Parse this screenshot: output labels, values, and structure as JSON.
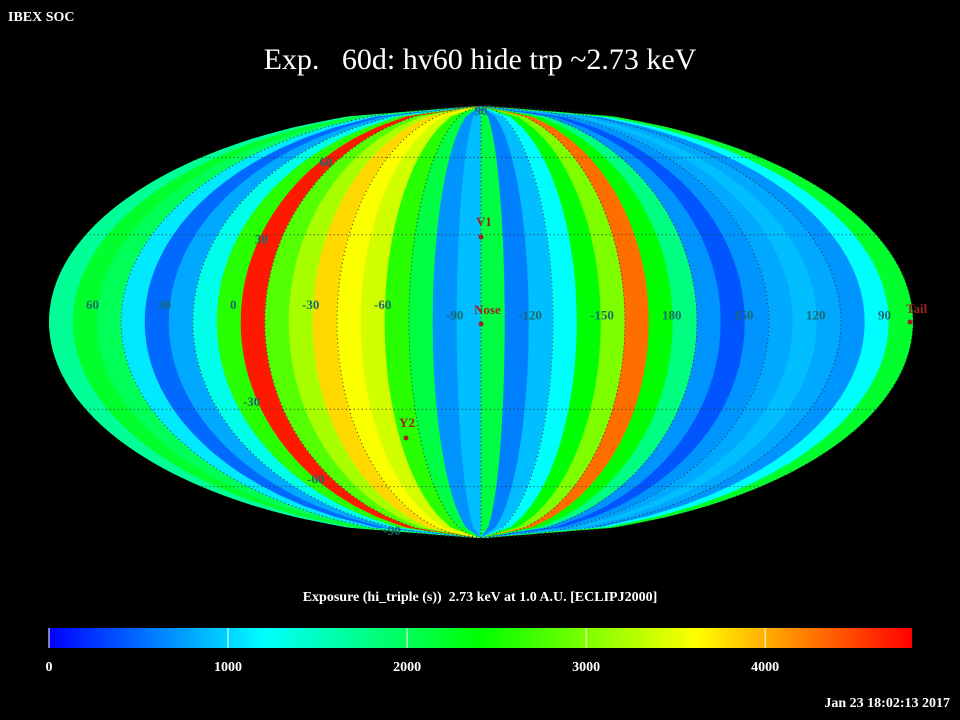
{
  "header": "IBEX SOC",
  "chart_data": {
    "type": "mollweide-map",
    "title": "Exp.   60d: hv60 hide trp ~2.73 keV",
    "center_lon": -90,
    "stripe_values": [
      1700,
      2200,
      2000,
      1100,
      500,
      800,
      1300,
      2600,
      4700,
      2800,
      3200,
      3800,
      3600,
      3400,
      2600,
      2100,
      700,
      900,
      2100,
      600,
      900,
      1200,
      2400,
      3000,
      4300,
      2400,
      1800,
      700,
      400,
      700,
      800,
      900,
      800,
      700,
      1200,
      2200
    ],
    "lon_ticks": [
      60,
      30,
      0,
      -30,
      -60,
      -90,
      -120,
      -150,
      180,
      150,
      120,
      90
    ],
    "lat_ticks": [
      90,
      60,
      30,
      -30,
      -60,
      -90
    ],
    "markers": [
      "V1",
      "Nose",
      "Y2",
      "Tail"
    ],
    "colorbar": {
      "label": "Exposure (hi_triple (s))  2.73 keV at 1.0 A.U. [ECLIPJ2000]",
      "vlim": [
        0,
        4820
      ],
      "ticks": [
        0,
        1000,
        2000,
        3000,
        4000
      ],
      "colors": [
        "#0000ff",
        "#00ffff",
        "#00ff00",
        "#ffff00",
        "#ff0000"
      ]
    },
    "timestamp": "Jan 23 18:02:13 2017"
  }
}
